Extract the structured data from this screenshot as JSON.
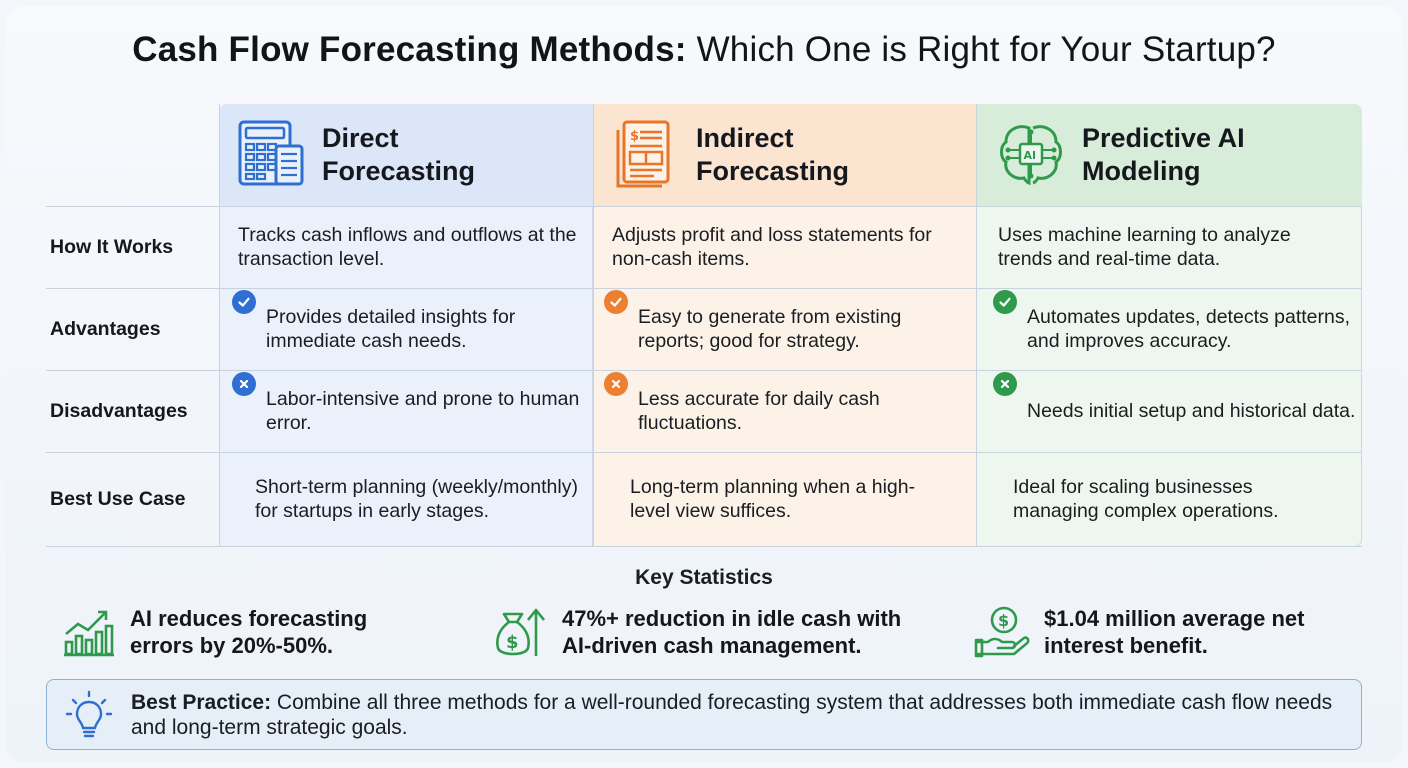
{
  "title_bold": "Cash Flow Forecasting Methods:",
  "title_rest": " Which One is Right for Your Startup?",
  "columns": [
    {
      "name_line1": "Direct",
      "name_line2": "Forecasting",
      "icon": "calculator-icon",
      "accent": "#2f6fd1"
    },
    {
      "name_line1": "Indirect",
      "name_line2": "Forecasting",
      "icon": "financial-document-icon",
      "accent": "#e8752a"
    },
    {
      "name_line1": "Predictive AI",
      "name_line2": "Modeling",
      "icon": "ai-brain-icon",
      "accent": "#2f9a4b"
    }
  ],
  "rows": [
    {
      "label": "How It Works",
      "cells": [
        "Tracks cash inflows and outflows at the transaction level.",
        "Adjusts profit and loss statements for non-cash items.",
        "Uses machine learning to analyze trends and real-time data."
      ]
    },
    {
      "label": "Advantages",
      "cells": [
        "Provides detailed insights for immediate cash needs.",
        "Easy to generate from existing reports; good for strategy.",
        "Automates updates, detects patterns, and improves accuracy."
      ]
    },
    {
      "label": "Disadvantages",
      "cells": [
        "Labor-intensive and prone to human error.",
        "Less accurate for daily cash fluctuations.",
        "Needs initial setup and historical data."
      ]
    },
    {
      "label": "Best Use Case",
      "cells": [
        "Short-term planning (weekly/monthly) for startups in early stages.",
        "Long-term planning when a high-level view suffices.",
        "Ideal for scaling businesses managing complex operations."
      ]
    }
  ],
  "stats": {
    "title": "Key Statistics",
    "items": [
      {
        "text": "AI reduces forecasting errors by 20%-50%.",
        "icon": "growth-chart-icon"
      },
      {
        "text": "47%+ reduction in idle cash with AI-driven cash management.",
        "icon": "money-bag-arrow-icon"
      },
      {
        "text": "$1.04 million average net interest benefit.",
        "icon": "coin-hand-icon"
      }
    ]
  },
  "best_practice": {
    "label": "Best Practice:",
    "text": " Combine all three methods for a well-rounded forecasting system that addresses both immediate cash flow needs and long-term strategic goals.",
    "icon": "lightbulb-icon"
  }
}
